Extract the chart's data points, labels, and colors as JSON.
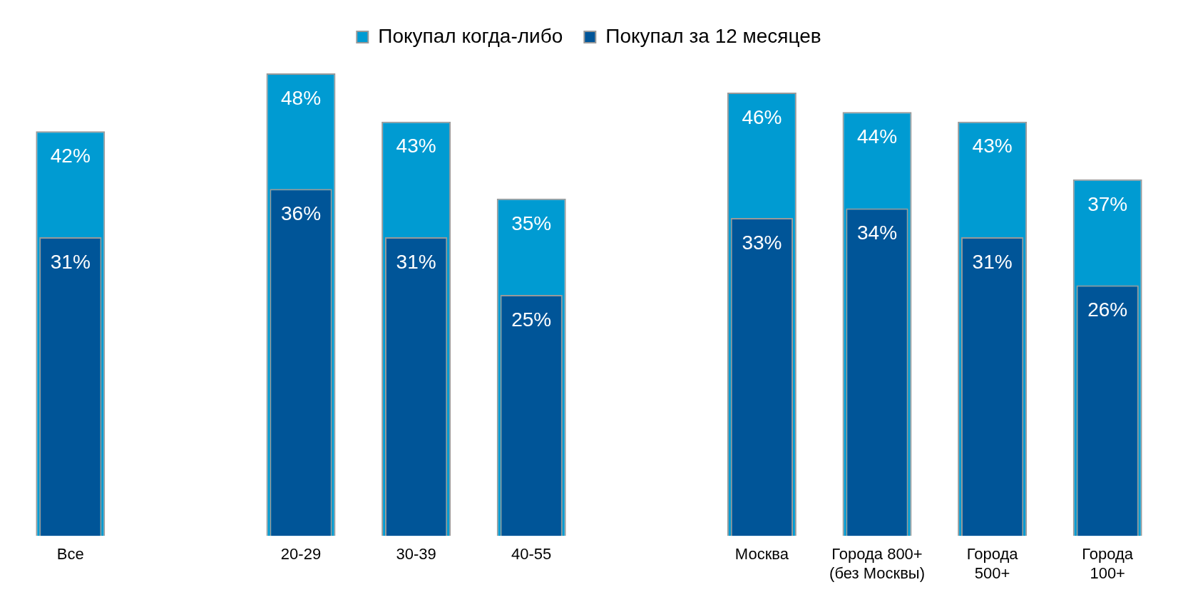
{
  "chart_data": {
    "type": "bar",
    "categories": [
      "Все",
      null,
      "20-29",
      "30-39",
      "40-55",
      null,
      "Москва",
      "Города 800+\n(без Москвы)",
      "Города\n500+",
      "Города\n100+"
    ],
    "series": [
      {
        "name": "Покупал когда-либо",
        "color": "#009bd2",
        "values": [
          42,
          null,
          48,
          43,
          35,
          null,
          46,
          44,
          43,
          37
        ],
        "value_labels": [
          "42%",
          null,
          "48%",
          "43%",
          "35%",
          null,
          "46%",
          "44%",
          "43%",
          "37%"
        ]
      },
      {
        "name": "Покупал за 12 месяцев",
        "color": "#005598",
        "values": [
          31,
          null,
          36,
          31,
          25,
          null,
          33,
          34,
          31,
          26
        ],
        "value_labels": [
          "31%",
          null,
          "36%",
          "31%",
          "25%",
          null,
          "33%",
          "34%",
          "31%",
          "26%"
        ]
      }
    ],
    "grid": false,
    "legend": "top"
  }
}
